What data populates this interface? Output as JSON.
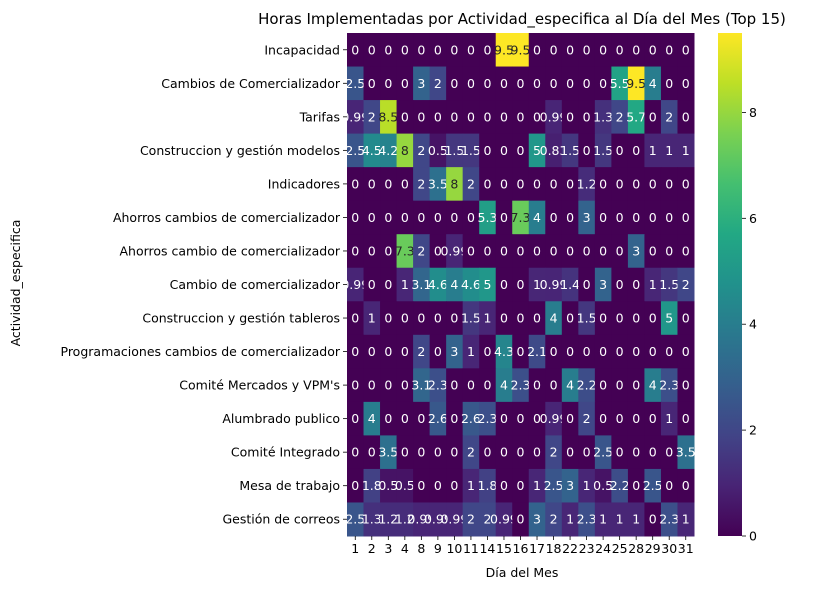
{
  "chart_data": {
    "type": "heatmap",
    "title": "Horas Implementadas por Actividad_especifica al Día del Mes (Top 15)",
    "xlabel": "Día del Mes",
    "ylabel": "Actividad_especifica",
    "colormap": "viridis",
    "vmin": 0,
    "vmax": 9.5,
    "colorbar_ticks": [
      "0",
      "2",
      "4",
      "6",
      "8"
    ],
    "colorbar_tick_values": [
      0,
      2,
      4,
      6,
      8
    ],
    "x": [
      "1",
      "2",
      "3",
      "4",
      "8",
      "9",
      "10",
      "11",
      "14",
      "15",
      "16",
      "17",
      "18",
      "22",
      "23",
      "24",
      "25",
      "28",
      "29",
      "30",
      "31"
    ],
    "y": [
      "Incapacidad",
      "Cambios de Comercializador",
      "Tarifas",
      "Construccion y gestión modelos",
      "Indicadores",
      "Ahorros cambios de comercializador",
      "Ahorros cambio de comercializador",
      "Cambio de comercializador",
      "Construccion y gestión tableros",
      "Programaciones cambios de comercializador",
      "Comité Mercados y VPM's",
      "Alumbrado publico",
      "Comité Integrado",
      "Mesa de trabajo",
      "Gestión de correos"
    ],
    "values": [
      [
        0,
        0,
        0,
        0,
        0,
        0,
        0,
        0,
        0,
        9.5,
        9.5,
        0,
        0,
        0,
        0,
        0,
        0,
        0,
        0,
        0,
        0
      ],
      [
        2.5,
        0,
        0,
        0,
        3,
        2,
        0,
        0,
        0,
        0,
        0,
        0,
        0,
        0,
        0,
        0,
        5.5,
        9.5,
        4,
        0,
        0
      ],
      [
        0.99,
        2,
        8.5,
        0,
        0,
        0,
        0,
        0,
        0,
        0,
        0,
        0,
        0.99,
        0,
        0,
        1.3,
        2,
        5.7,
        0,
        2,
        0
      ],
      [
        2.5,
        4.5,
        4.2,
        8,
        2,
        0.5,
        1.5,
        1.5,
        0,
        0,
        0,
        5,
        0.83,
        1.5,
        0,
        1.5,
        0,
        0,
        1,
        1,
        1
      ],
      [
        0,
        0,
        0,
        0,
        2,
        3.5,
        8,
        2,
        0,
        0,
        0,
        0,
        0,
        0,
        1.2,
        0,
        0,
        0,
        0,
        0,
        0
      ],
      [
        0,
        0,
        0,
        0,
        0,
        0,
        0,
        0,
        5.3,
        0,
        7.3,
        4,
        0,
        0,
        3,
        0,
        0,
        0,
        0,
        0,
        0
      ],
      [
        0,
        0,
        0,
        7.3,
        2,
        0,
        0.99,
        0,
        0,
        0,
        0,
        0,
        0,
        0,
        0,
        0,
        0,
        3,
        0,
        0,
        0
      ],
      [
        0.99,
        0,
        0,
        1,
        3.1,
        4.6,
        4,
        4.6,
        5,
        0,
        0,
        1,
        0.99,
        1.4,
        0,
        3,
        0,
        0,
        1,
        1.5,
        2
      ],
      [
        0,
        1,
        0,
        0,
        0,
        0,
        0,
        1.5,
        1,
        0,
        0,
        0,
        4,
        0,
        1.5,
        0,
        0,
        0,
        0,
        5,
        0
      ],
      [
        0,
        0,
        0,
        0,
        2,
        0,
        3,
        1,
        0,
        4.3,
        0,
        2.1,
        0,
        0,
        0,
        0,
        0,
        0,
        0,
        0,
        0
      ],
      [
        0,
        0,
        0,
        0,
        3.1,
        2.3,
        0,
        0,
        0,
        4,
        2.3,
        0,
        0,
        4,
        2.2,
        0,
        0,
        0,
        4,
        2.3,
        0
      ],
      [
        0,
        4,
        0,
        0,
        0,
        2.6,
        0,
        2.6,
        2.3,
        0,
        0,
        0,
        0.99,
        0,
        2,
        0,
        0,
        0,
        0,
        1,
        0
      ],
      [
        0,
        0,
        3.5,
        0,
        0,
        0,
        0,
        2,
        0,
        0,
        0,
        0,
        2,
        0,
        0,
        2.5,
        0,
        0,
        0,
        0,
        3.5
      ],
      [
        0,
        1.8,
        0.5,
        0.5,
        0,
        0,
        0,
        1,
        1.8,
        0,
        0,
        1,
        2.5,
        3,
        1,
        0.5,
        2.2,
        0,
        2.5,
        0,
        0
      ],
      [
        2.5,
        1.3,
        1.2,
        1.2,
        0.99,
        0.99,
        0.99,
        2,
        2,
        0.99,
        0,
        3,
        2,
        1,
        2.3,
        1,
        1,
        1,
        0,
        2.3,
        1
      ]
    ],
    "cell_labels": [
      [
        "0",
        "0",
        "0",
        "0",
        "0",
        "0",
        "0",
        "0",
        "0",
        "9.5",
        "9.5",
        "0",
        "0",
        "0",
        "0",
        "0",
        "0",
        "0",
        "0",
        "0",
        "0"
      ],
      [
        "2.5",
        "0",
        "0",
        "0",
        "3",
        "2",
        "0",
        "0",
        "0",
        "0",
        "0",
        "0",
        "0",
        "0",
        "0",
        "0",
        "5.5",
        "9.5",
        "4",
        "0",
        "0"
      ],
      [
        "0.99",
        "2",
        "8.5",
        "0",
        "0",
        "0",
        "0",
        "0",
        "0",
        "0",
        "0",
        "0",
        "0.99",
        "0",
        "0",
        "1.3",
        "2",
        "5.7",
        "0",
        "2",
        "0"
      ],
      [
        "2.5",
        "4.5",
        "4.2",
        "8",
        "2",
        "0.5",
        "1.5",
        "1.5",
        "0",
        "0",
        "0",
        "5",
        "0.83",
        "1.5",
        "0",
        "1.5",
        "0",
        "0",
        "1",
        "1",
        "1"
      ],
      [
        "0",
        "0",
        "0",
        "0",
        "2",
        "3.5",
        "8",
        "2",
        "0",
        "0",
        "0",
        "0",
        "0",
        "0",
        "1.2",
        "0",
        "0",
        "0",
        "0",
        "0",
        "0"
      ],
      [
        "0",
        "0",
        "0",
        "0",
        "0",
        "0",
        "0",
        "0",
        "5.3",
        "0",
        "7.3",
        "4",
        "0",
        "0",
        "3",
        "0",
        "0",
        "0",
        "0",
        "0",
        "0"
      ],
      [
        "0",
        "0",
        "0",
        "7.3",
        "2",
        "0",
        "0.99",
        "0",
        "0",
        "0",
        "0",
        "0",
        "0",
        "0",
        "0",
        "0",
        "0",
        "3",
        "0",
        "0",
        "0"
      ],
      [
        "0.99",
        "0",
        "0",
        "1",
        "3.1",
        "4.6",
        "4",
        "4.6",
        "5",
        "0",
        "0",
        "1",
        "0.99",
        "1.4",
        "0",
        "3",
        "0",
        "0",
        "1",
        "1.5",
        "2"
      ],
      [
        "0",
        "1",
        "0",
        "0",
        "0",
        "0",
        "0",
        "1.5",
        "1",
        "0",
        "0",
        "0",
        "4",
        "0",
        "1.5",
        "0",
        "0",
        "0",
        "0",
        "5",
        "0"
      ],
      [
        "0",
        "0",
        "0",
        "0",
        "2",
        "0",
        "3",
        "1",
        "0",
        "4.3",
        "0",
        "2.1",
        "0",
        "0",
        "0",
        "0",
        "0",
        "0",
        "0",
        "0",
        "0"
      ],
      [
        "0",
        "0",
        "0",
        "0",
        "3.1",
        "2.3",
        "0",
        "0",
        "0",
        "4",
        "2.3",
        "0",
        "0",
        "4",
        "2.2",
        "0",
        "0",
        "0",
        "4",
        "2.3",
        "0"
      ],
      [
        "0",
        "4",
        "0",
        "0",
        "0",
        "2.6",
        "0",
        "2.6",
        "2.3",
        "0",
        "0",
        "0",
        "0.99",
        "0",
        "2",
        "0",
        "0",
        "0",
        "0",
        "1",
        "0"
      ],
      [
        "0",
        "0",
        "3.5",
        "0",
        "0",
        "0",
        "0",
        "2",
        "0",
        "0",
        "0",
        "0",
        "2",
        "0",
        "0",
        "2.5",
        "0",
        "0",
        "0",
        "0",
        "3.5"
      ],
      [
        "0",
        "1.8",
        "0.5",
        "0.5",
        "0",
        "0",
        "0",
        "1",
        "1.8",
        "0",
        "0",
        "1",
        "2.5",
        "3",
        "1",
        "0.5",
        "2.2",
        "0",
        "2.5",
        "0",
        "0"
      ],
      [
        "2.5",
        "1.3",
        "1.2",
        "1.2",
        "0.99",
        "0.99",
        "0.99",
        "2",
        "2",
        "0.99",
        "0",
        "3",
        "2",
        "1",
        "2.3",
        "1",
        "1",
        "1",
        "0",
        "2.3",
        "1"
      ]
    ]
  }
}
